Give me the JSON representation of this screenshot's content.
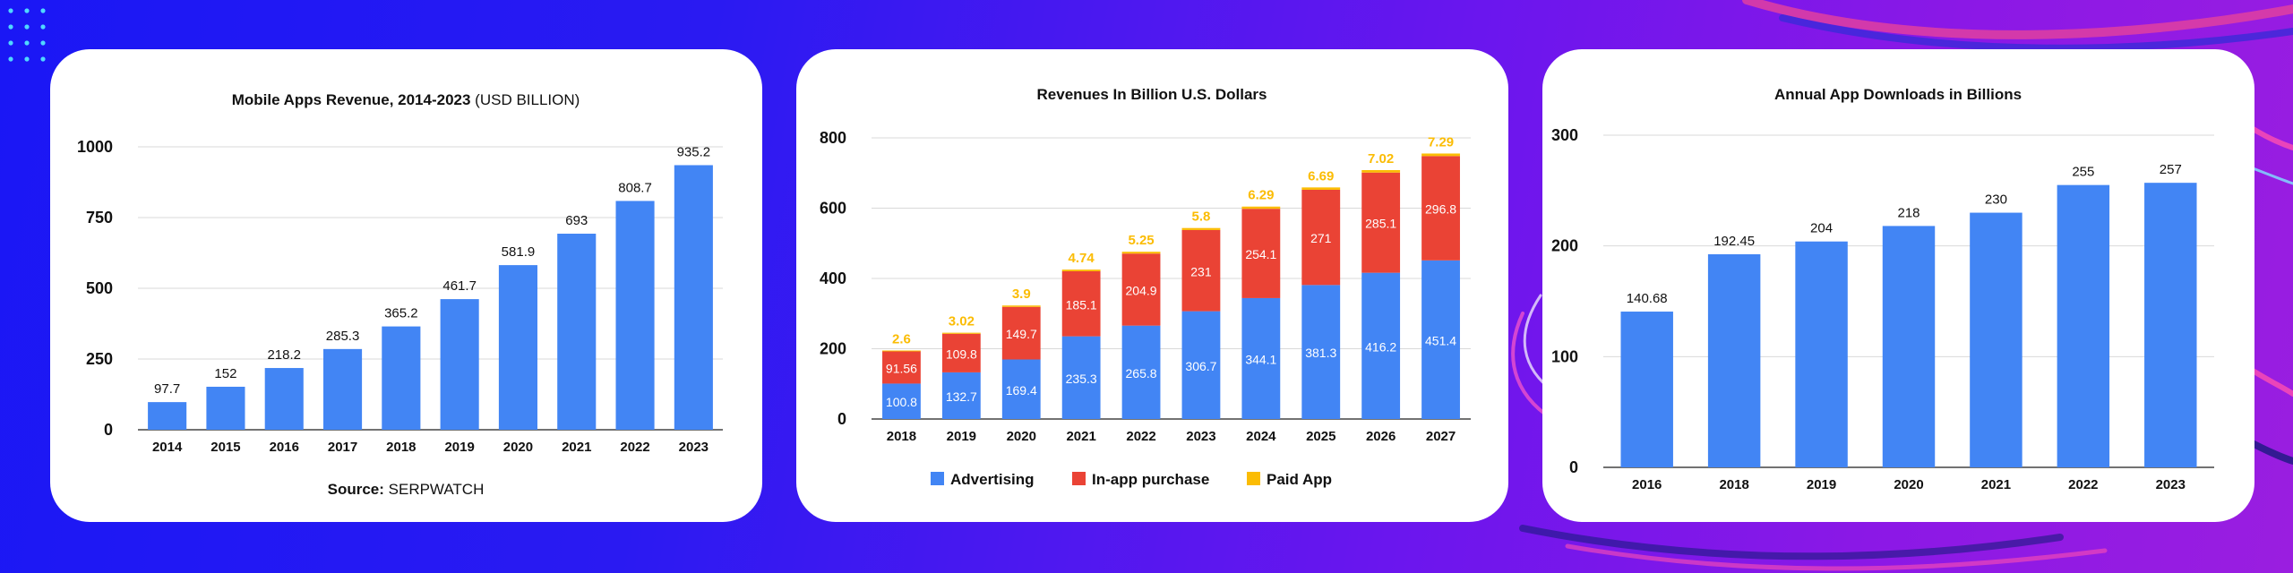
{
  "colors": {
    "bar": "#4285f4",
    "advertising": "#4285f4",
    "in_app": "#ea4335",
    "paid": "#fbbc04",
    "grid": "#d9d9d9",
    "axis": "#444444",
    "text": "#111111"
  },
  "chart_data": [
    {
      "type": "bar",
      "title": "Mobile Apps Revenue, 2014-2023",
      "title_suffix": "(USD BILLION)",
      "categories": [
        "2014",
        "2015",
        "2016",
        "2017",
        "2018",
        "2019",
        "2020",
        "2021",
        "2022",
        "2023"
      ],
      "values": [
        97.7,
        152,
        218.2,
        285.3,
        365.2,
        461.7,
        581.9,
        693,
        808.7,
        935.2
      ],
      "ylim": [
        0,
        1000
      ],
      "yticks": [
        0,
        250,
        500,
        750,
        1000
      ],
      "grid": true,
      "source_label": "Source:",
      "source_value": "SERPWATCH"
    },
    {
      "type": "bar",
      "stacked": true,
      "title": "Revenues In Billion U.S. Dollars",
      "categories": [
        "2018",
        "2019",
        "2020",
        "2021",
        "2022",
        "2023",
        "2024",
        "2025",
        "2026",
        "2027"
      ],
      "series": [
        {
          "name": "Advertising",
          "values": [
            100.8,
            132.7,
            169.4,
            235.3,
            265.8,
            306.7,
            344.1,
            381.3,
            416.2,
            451.4
          ]
        },
        {
          "name": "In-app purchase",
          "values": [
            91.56,
            109.8,
            149.7,
            185.1,
            204.9,
            231,
            254.1,
            271,
            285.1,
            296.8
          ]
        },
        {
          "name": "Paid App",
          "values": [
            2.6,
            3.02,
            3.9,
            4.74,
            5.25,
            5.8,
            6.29,
            6.69,
            7.02,
            7.29
          ]
        }
      ],
      "ylim": [
        0,
        800
      ],
      "yticks": [
        0,
        200,
        400,
        600,
        800
      ],
      "grid": true,
      "legend": "bottom"
    },
    {
      "type": "bar",
      "title": "Annual App Downloads in Billions",
      "categories": [
        "2016",
        "2018",
        "2019",
        "2020",
        "2021",
        "2022",
        "2023"
      ],
      "values": [
        140.68,
        192.45,
        204,
        218,
        230,
        255,
        257
      ],
      "ylim": [
        0,
        300
      ],
      "yticks": [
        0,
        100,
        200,
        300
      ],
      "grid": true
    }
  ]
}
